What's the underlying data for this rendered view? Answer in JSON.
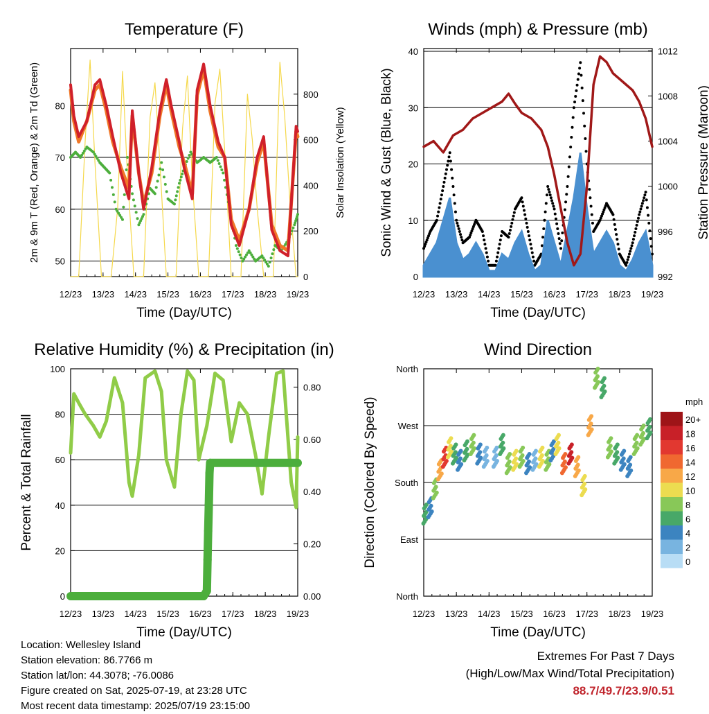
{
  "colors": {
    "temp_red": "#d0202a",
    "temp_orange": "#f07828",
    "dewpoint_green": "#4cae3c",
    "solar_yellow": "#f5d84a",
    "wind_blue": "#4a90d0",
    "gust_black": "#000000",
    "pressure_maroon": "#a01818",
    "rh_green": "#90cc48",
    "precip_green": "#4cae3c"
  },
  "info": {
    "location": "Location: Wellesley Island",
    "elevation": "Station elevation: 86.7766 m",
    "latlon": "Station lat/lon: 44.3078; -76.0086",
    "created": "Figure created on Sat, 2025-07-19, at 23:28 UTC",
    "recent": "Most recent data timestamp: 2025/07/19 23:15:00"
  },
  "extremes": {
    "line1": "Extremes For Past 7 Days",
    "line2": "(High/Low/Max Wind/Total Precipitation)",
    "values": "88.7/49.7/23.9/0.51"
  },
  "chart_data": [
    {
      "type": "line",
      "title": "Temperature (F)",
      "xlabel": "Time (Day/UTC)",
      "ylabel": "2m & 9m T (Red, Orange) & 2m Td (Green)",
      "ylabel_right": "Solar Insolation (Yellow)",
      "x_ticks": [
        "12/23",
        "13/23",
        "14/23",
        "15/23",
        "16/23",
        "17/23",
        "18/23",
        "19/23"
      ],
      "y_ticks": [
        50,
        60,
        70,
        80
      ],
      "ylim": [
        47,
        91
      ],
      "y2_ticks": [
        0,
        200,
        400,
        600,
        800
      ],
      "y2lim": [
        0,
        1000
      ],
      "grid": true,
      "series": [
        {
          "key": "temp2m",
          "x": [
            12.0,
            12.1,
            12.25,
            12.5,
            12.75,
            12.9,
            13.1,
            13.3,
            13.55,
            13.8,
            13.9,
            14.1,
            14.25,
            14.5,
            14.75,
            14.95,
            15.1,
            15.35,
            15.5,
            15.75,
            15.9,
            16.1,
            16.3,
            16.55,
            16.75,
            16.95,
            17.2,
            17.5,
            17.75,
            17.95,
            18.2,
            18.45,
            18.7,
            18.95,
            19.0
          ],
          "y": [
            84,
            78,
            74,
            77,
            84,
            85,
            80,
            74,
            67,
            62,
            79,
            67,
            60,
            68,
            79,
            85,
            80,
            73,
            68,
            62,
            83,
            88,
            80,
            73,
            70,
            57,
            53,
            60,
            70,
            74,
            56,
            52,
            51,
            76,
            75
          ]
        },
        {
          "key": "temp9m",
          "x": [
            12.0,
            12.1,
            12.25,
            12.5,
            12.75,
            12.9,
            13.1,
            13.3,
            13.55,
            13.8,
            13.9,
            14.1,
            14.25,
            14.5,
            14.75,
            14.95,
            15.1,
            15.35,
            15.5,
            15.75,
            15.9,
            16.1,
            16.3,
            16.55,
            16.75,
            16.95,
            17.2,
            17.5,
            17.75,
            17.95,
            18.2,
            18.45,
            18.7,
            18.95,
            19.0
          ],
          "y": [
            83,
            77,
            73,
            77,
            83,
            84,
            79,
            73,
            68,
            64,
            78,
            67,
            61,
            67,
            78,
            84,
            79,
            72,
            69,
            63,
            82,
            87,
            79,
            72,
            70,
            58,
            54,
            60,
            69,
            73,
            57,
            53,
            52,
            75,
            74
          ]
        },
        {
          "key": "dewpoint",
          "x": [
            12.0,
            12.15,
            12.3,
            12.5,
            12.7,
            12.9,
            13.05,
            13.2,
            13.4,
            13.6,
            13.75,
            13.9,
            14.1,
            14.25,
            14.45,
            14.6,
            14.8,
            15.0,
            15.2,
            15.35,
            15.5,
            15.7,
            15.9,
            16.1,
            16.3,
            16.5,
            16.7,
            16.9,
            17.1,
            17.3,
            17.5,
            17.7,
            17.9,
            18.1,
            18.3,
            18.5,
            18.7,
            18.9,
            19.0
          ],
          "y": [
            70,
            71,
            70,
            72,
            71,
            69,
            68,
            67,
            60,
            58,
            70,
            63,
            57,
            59,
            64,
            63,
            69,
            62,
            61,
            65,
            68,
            71,
            69,
            70,
            69,
            70,
            67,
            60,
            53,
            50,
            52,
            50,
            51,
            49,
            53,
            52,
            54,
            57,
            59
          ]
        },
        {
          "key": "solar",
          "x": [
            12.0,
            12.25,
            12.45,
            12.6,
            12.75,
            12.95,
            13.25,
            13.45,
            13.6,
            13.75,
            13.95,
            14.25,
            14.45,
            14.6,
            14.75,
            14.95,
            15.25,
            15.45,
            15.6,
            15.75,
            15.95,
            16.25,
            16.45,
            16.6,
            16.75,
            16.95,
            17.25,
            17.45,
            17.6,
            17.75,
            17.95,
            18.25,
            18.45,
            18.6,
            18.75,
            18.95,
            19.0
          ],
          "y": [
            0,
            0,
            600,
            950,
            500,
            0,
            0,
            300,
            900,
            450,
            0,
            0,
            700,
            850,
            500,
            0,
            0,
            650,
            880,
            420,
            0,
            0,
            760,
            910,
            550,
            0,
            0,
            800,
            600,
            300,
            0,
            0,
            940,
            700,
            350,
            0,
            0
          ]
        }
      ]
    },
    {
      "type": "scatter",
      "title": "Winds (mph) & Pressure (mb)",
      "xlabel": "Time (Day/UTC)",
      "ylabel": "Sonic Wind & Gust (Blue, Black)",
      "ylabel_right": "Station Pressure (Maroon)",
      "x_ticks": [
        "12/23",
        "13/23",
        "14/23",
        "15/23",
        "16/23",
        "17/23",
        "18/23",
        "19/23"
      ],
      "y_ticks": [
        0,
        10,
        20,
        30,
        40
      ],
      "ylim": [
        0,
        40.5
      ],
      "y2_ticks": [
        992,
        996,
        1000,
        1004,
        1008,
        1012
      ],
      "y2lim": [
        992,
        1012.2
      ],
      "grid": true,
      "series": [
        {
          "key": "wind",
          "x": [
            12.0,
            12.2,
            12.4,
            12.6,
            12.8,
            13.0,
            13.2,
            13.4,
            13.6,
            13.8,
            14.0,
            14.2,
            14.4,
            14.6,
            14.8,
            15.0,
            15.2,
            15.4,
            15.6,
            15.8,
            16.0,
            16.2,
            16.4,
            16.6,
            16.8,
            17.0,
            17.2,
            17.4,
            17.6,
            17.8,
            18.0,
            18.2,
            18.4,
            18.6,
            18.8,
            19.0
          ],
          "y": [
            2,
            4,
            6,
            10,
            14,
            6,
            3,
            4,
            6,
            4,
            1,
            1,
            4,
            3,
            6,
            8,
            4,
            1,
            2,
            10,
            6,
            2,
            8,
            14,
            22,
            12,
            4,
            6,
            8,
            6,
            2,
            1,
            3,
            6,
            8,
            2
          ]
        },
        {
          "key": "gust",
          "x": [
            12.0,
            12.2,
            12.4,
            12.6,
            12.8,
            13.0,
            13.2,
            13.4,
            13.6,
            13.8,
            14.0,
            14.2,
            14.4,
            14.6,
            14.8,
            15.0,
            15.2,
            15.4,
            15.6,
            15.8,
            16.0,
            16.2,
            16.4,
            16.6,
            16.8,
            17.0,
            17.2,
            17.4,
            17.6,
            17.8,
            18.0,
            18.2,
            18.4,
            18.6,
            18.8,
            19.0
          ],
          "y": [
            5,
            8,
            10,
            16,
            22,
            10,
            6,
            7,
            10,
            8,
            2,
            2,
            8,
            7,
            12,
            14,
            8,
            2,
            4,
            16,
            12,
            5,
            16,
            30,
            38,
            20,
            8,
            10,
            13,
            11,
            4,
            2,
            6,
            11,
            15,
            4
          ]
        },
        {
          "key": "pressure",
          "x": [
            12.0,
            12.3,
            12.6,
            12.9,
            13.2,
            13.5,
            13.8,
            14.1,
            14.4,
            14.6,
            14.8,
            15.0,
            15.3,
            15.6,
            15.8,
            16.0,
            16.2,
            16.4,
            16.6,
            16.8,
            17.0,
            17.2,
            17.4,
            17.6,
            17.8,
            18.0,
            18.2,
            18.4,
            18.6,
            18.8,
            19.0
          ],
          "y": [
            1003.5,
            1004,
            1003,
            1004.5,
            1005,
            1006,
            1006.5,
            1007,
            1007.5,
            1008.2,
            1007.3,
            1006.5,
            1006,
            1005,
            1003.5,
            1001,
            998,
            995,
            993,
            994,
            1000,
            1009,
            1011.5,
            1011,
            1010,
            1009.5,
            1009,
            1008.5,
            1007.5,
            1006,
            1003.5
          ]
        }
      ]
    },
    {
      "type": "line",
      "title": "Relative Humidity (%) & Precipitation (in)",
      "xlabel": "Time (Day/UTC)",
      "ylabel": "Percent & Total Rainfall",
      "x_ticks": [
        "12/23",
        "13/23",
        "14/23",
        "15/23",
        "16/23",
        "17/23",
        "18/23",
        "19/23"
      ],
      "y_ticks": [
        0,
        20,
        40,
        60,
        80,
        100
      ],
      "ylim": [
        0,
        100
      ],
      "y2_ticks": [
        "0.00",
        "0.20",
        "0.40",
        "0.60",
        "0.80"
      ],
      "y2lim": [
        0,
        0.87
      ],
      "grid": true,
      "series": [
        {
          "key": "rh",
          "x": [
            12.0,
            12.1,
            12.25,
            12.45,
            12.7,
            12.9,
            13.1,
            13.35,
            13.6,
            13.8,
            13.9,
            14.1,
            14.3,
            14.6,
            14.8,
            14.95,
            15.2,
            15.4,
            15.6,
            15.8,
            15.95,
            16.2,
            16.45,
            16.7,
            16.95,
            17.2,
            17.45,
            17.7,
            17.9,
            18.1,
            18.35,
            18.55,
            18.8,
            18.95,
            19.0
          ],
          "y": [
            63,
            89,
            85,
            80,
            75,
            70,
            77,
            96,
            85,
            50,
            44,
            62,
            96,
            99,
            90,
            60,
            48,
            80,
            99,
            95,
            60,
            75,
            98,
            95,
            68,
            85,
            80,
            62,
            45,
            70,
            98,
            99,
            50,
            39,
            70
          ]
        },
        {
          "key": "precip",
          "x": [
            12.0,
            16.1,
            16.2,
            16.22,
            16.24,
            16.26,
            16.28,
            16.3,
            19.0
          ],
          "y": [
            0,
            0,
            0.02,
            0.14,
            0.25,
            0.35,
            0.47,
            0.51,
            0.51
          ]
        }
      ]
    },
    {
      "type": "scatter",
      "title": "Wind Direction",
      "xlabel": "Time (Day/UTC)",
      "ylabel": "Direction (Colored By Speed)",
      "x_ticks": [
        "12/23",
        "13/23",
        "14/23",
        "15/23",
        "16/23",
        "17/23",
        "18/23",
        "19/23"
      ],
      "y_ticks": [
        "North",
        "East",
        "South",
        "West",
        "North"
      ],
      "ylim": [
        0,
        360
      ],
      "grid": true,
      "colorbar": {
        "title": "mph",
        "labels": [
          "20+",
          "18",
          "16",
          "14",
          "12",
          "10",
          "8",
          "6",
          "4",
          "2",
          "0"
        ],
        "colors": [
          "#9e1418",
          "#c82028",
          "#e23830",
          "#f06830",
          "#f8a848",
          "#ecdc50",
          "#88c858",
          "#48a868",
          "#3c84c0",
          "#78b4e0",
          "#b8ddf5"
        ]
      },
      "series": [
        {
          "key": "dir",
          "x": [
            12.05,
            12.2,
            12.35,
            12.5,
            12.65,
            12.8,
            12.95,
            13.1,
            13.3,
            13.5,
            13.7,
            13.9,
            14.2,
            14.4,
            14.6,
            14.8,
            15.0,
            15.2,
            15.4,
            15.6,
            15.8,
            15.95,
            16.1,
            16.3,
            16.5,
            16.7,
            16.9,
            17.1,
            17.3,
            17.5,
            17.7,
            17.9,
            18.1,
            18.3,
            18.5,
            18.7,
            18.9
          ],
          "y": [
            130,
            140,
            170,
            200,
            220,
            235,
            225,
            215,
            230,
            240,
            225,
            220,
            220,
            240,
            210,
            215,
            220,
            210,
            215,
            220,
            215,
            230,
            240,
            210,
            225,
            205,
            175,
            270,
            345,
            330,
            235,
            225,
            215,
            205,
            240,
            255,
            265
          ],
          "speed": [
            5,
            4,
            7,
            12,
            15,
            10,
            6,
            4,
            5,
            7,
            4,
            2,
            1,
            6,
            8,
            10,
            7,
            3,
            2,
            9,
            8,
            4,
            10,
            14,
            17,
            12,
            9,
            11,
            7,
            5,
            7,
            6,
            3,
            4,
            7,
            8,
            6
          ]
        }
      ]
    }
  ]
}
